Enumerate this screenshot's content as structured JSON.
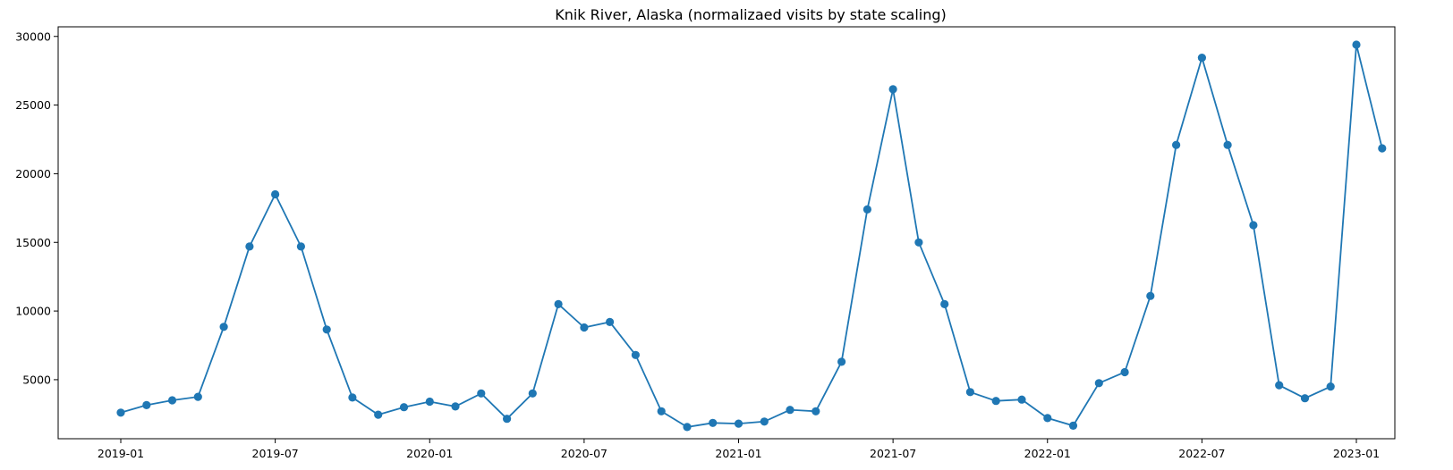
{
  "chart_data": {
    "type": "line",
    "title": "Knik River, Alaska (normalizaed visits by state scaling)",
    "xlabel": "",
    "ylabel": "",
    "x": [
      "2019-01",
      "2019-02",
      "2019-03",
      "2019-04",
      "2019-05",
      "2019-06",
      "2019-07",
      "2019-08",
      "2019-09",
      "2019-10",
      "2019-11",
      "2019-12",
      "2020-01",
      "2020-02",
      "2020-03",
      "2020-04",
      "2020-05",
      "2020-06",
      "2020-07",
      "2020-08",
      "2020-09",
      "2020-10",
      "2020-11",
      "2020-12",
      "2021-01",
      "2021-02",
      "2021-03",
      "2021-04",
      "2021-05",
      "2021-06",
      "2021-07",
      "2021-08",
      "2021-09",
      "2021-10",
      "2021-11",
      "2021-12",
      "2022-01",
      "2022-02",
      "2022-03",
      "2022-04",
      "2022-05",
      "2022-06",
      "2022-07",
      "2022-08",
      "2022-09",
      "2022-10",
      "2022-11",
      "2022-12",
      "2023-01",
      "2023-02"
    ],
    "series": [
      {
        "color": "#1f77b4",
        "marker": "circle",
        "values": [
          2600,
          3150,
          3500,
          3750,
          8850,
          14700,
          18500,
          14700,
          8650,
          3700,
          2450,
          3000,
          3400,
          3050,
          4000,
          2150,
          4000,
          10500,
          8800,
          9200,
          6800,
          2700,
          1550,
          1850,
          1800,
          1950,
          2800,
          2700,
          6300,
          17400,
          26150,
          15000,
          10500,
          4100,
          3450,
          3550,
          2200,
          1650,
          4750,
          5550,
          11100,
          22100,
          28450,
          22100,
          16250,
          4600,
          3650,
          4500,
          29400,
          21850
        ]
      }
    ],
    "xticks": [
      "2019-01",
      "2019-07",
      "2020-01",
      "2020-07",
      "2021-01",
      "2021-07",
      "2022-01",
      "2022-07",
      "2023-01"
    ],
    "yticks": [
      5000,
      10000,
      15000,
      20000,
      25000,
      30000
    ],
    "ylim": [
      700,
      30700
    ],
    "grid": false,
    "legend": "none"
  }
}
